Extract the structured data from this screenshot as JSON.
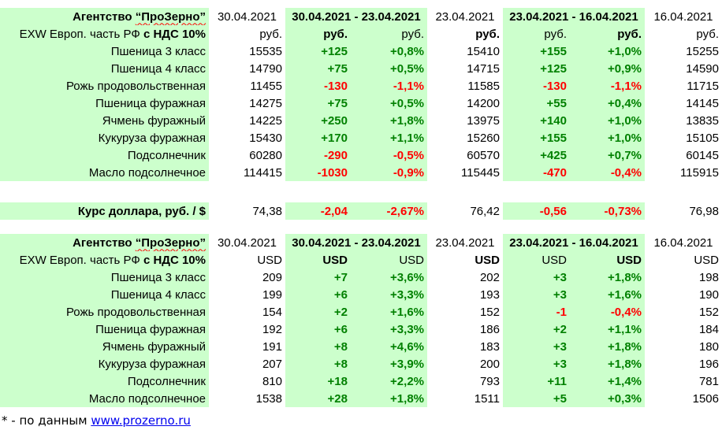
{
  "rub_table": {
    "agency": "Агентство",
    "agency_name": "“ПроЗерно”",
    "dates": [
      "30.04.2021",
      "30.04.2021 - 23.04.2021",
      "23.04.2021",
      "23.04.2021 - 16.04.2021",
      "16.04.2021"
    ],
    "basis_prefix": "EXW Европ. часть РФ",
    "basis_vat": "с НДС 10%",
    "units": [
      "руб.",
      "руб.",
      "руб.",
      "руб.",
      "руб.",
      "руб.",
      "руб."
    ],
    "rows": [
      {
        "name": "Пшеница 3 класс",
        "v1": "15535",
        "d1": "+125",
        "p1": "+0,8%",
        "v2": "15410",
        "d2": "+155",
        "p2": "+1,0%",
        "v3": "15255"
      },
      {
        "name": "Пшеница 4 класс",
        "v1": "14790",
        "d1": "+75",
        "p1": "+0,5%",
        "v2": "14715",
        "d2": "+125",
        "p2": "+0,9%",
        "v3": "14590"
      },
      {
        "name": "Рожь продовольственная",
        "v1": "11455",
        "d1": "-130",
        "p1": "-1,1%",
        "v2": "11585",
        "d2": "-130",
        "p2": "-1,1%",
        "v3": "11715"
      },
      {
        "name": "Пшеница фуражная",
        "v1": "14275",
        "d1": "+75",
        "p1": "+0,5%",
        "v2": "14200",
        "d2": "+55",
        "p2": "+0,4%",
        "v3": "14145"
      },
      {
        "name": "Ячмень фуражный",
        "v1": "14225",
        "d1": "+250",
        "p1": "+1,8%",
        "v2": "13975",
        "d2": "+140",
        "p2": "+1,0%",
        "v3": "13835"
      },
      {
        "name": "Кукуруза фуражная",
        "v1": "15430",
        "d1": "+170",
        "p1": "+1,1%",
        "v2": "15260",
        "d2": "+155",
        "p2": "+1,0%",
        "v3": "15105"
      },
      {
        "name": "Подсолнечник",
        "v1": "60280",
        "d1": "-290",
        "p1": "-0,5%",
        "v2": "60570",
        "d2": "+425",
        "p2": "+0,7%",
        "v3": "60145"
      },
      {
        "name": "Масло подсолнечное",
        "v1": "114415",
        "d1": "-1030",
        "p1": "-0,9%",
        "v2": "115445",
        "d2": "-470",
        "p2": "-0,4%",
        "v3": "115915"
      }
    ]
  },
  "fx": {
    "label": "Курс доллара, руб. / $",
    "v1": "74,38",
    "d1": "-2,04",
    "p1": "-2,67%",
    "v2": "76,42",
    "d2": "-0,56",
    "p2": "-0,73%",
    "v3": "76,98"
  },
  "usd_table": {
    "agency": "Агентство",
    "agency_name": "“ПроЗерно”",
    "dates": [
      "30.04.2021",
      "30.04.2021 - 23.04.2021",
      "23.04.2021",
      "23.04.2021 - 16.04.2021",
      "16.04.2021"
    ],
    "basis_prefix": "EXW Европ. часть РФ",
    "basis_vat": "с НДС 10%",
    "units": [
      "USD",
      "USD",
      "USD",
      "USD",
      "USD",
      "USD",
      "USD"
    ],
    "rows": [
      {
        "name": "Пшеница 3 класс",
        "v1": "209",
        "d1": "+7",
        "p1": "+3,6%",
        "v2": "202",
        "d2": "+3",
        "p2": "+1,8%",
        "v3": "198"
      },
      {
        "name": "Пшеница 4 класс",
        "v1": "199",
        "d1": "+6",
        "p1": "+3,3%",
        "v2": "193",
        "d2": "+3",
        "p2": "+1,6%",
        "v3": "190"
      },
      {
        "name": "Рожь продовольственная",
        "v1": "154",
        "d1": "+2",
        "p1": "+1,6%",
        "v2": "152",
        "d2": "-1",
        "p2": "-0,4%",
        "v3": "152"
      },
      {
        "name": "Пшеница фуражная",
        "v1": "192",
        "d1": "+6",
        "p1": "+3,3%",
        "v2": "186",
        "d2": "+2",
        "p2": "+1,1%",
        "v3": "184"
      },
      {
        "name": "Ячмень фуражный",
        "v1": "191",
        "d1": "+8",
        "p1": "+4,6%",
        "v2": "183",
        "d2": "+3",
        "p2": "+1,8%",
        "v3": "180"
      },
      {
        "name": "Кукуруза фуражная",
        "v1": "207",
        "d1": "+8",
        "p1": "+3,9%",
        "v2": "200",
        "d2": "+3",
        "p2": "+1,8%",
        "v3": "196"
      },
      {
        "name": "Подсолнечник",
        "v1": "810",
        "d1": "+18",
        "p1": "+2,2%",
        "v2": "793",
        "d2": "+11",
        "p2": "+1,4%",
        "v3": "781"
      },
      {
        "name": "Масло подсолнечное",
        "v1": "1538",
        "d1": "+28",
        "p1": "+1,8%",
        "v2": "1511",
        "d2": "+5",
        "p2": "+0,3%",
        "v3": "1506"
      }
    ]
  },
  "footnote": {
    "text": "* - по данным ",
    "link": "www.prozerno.ru"
  }
}
